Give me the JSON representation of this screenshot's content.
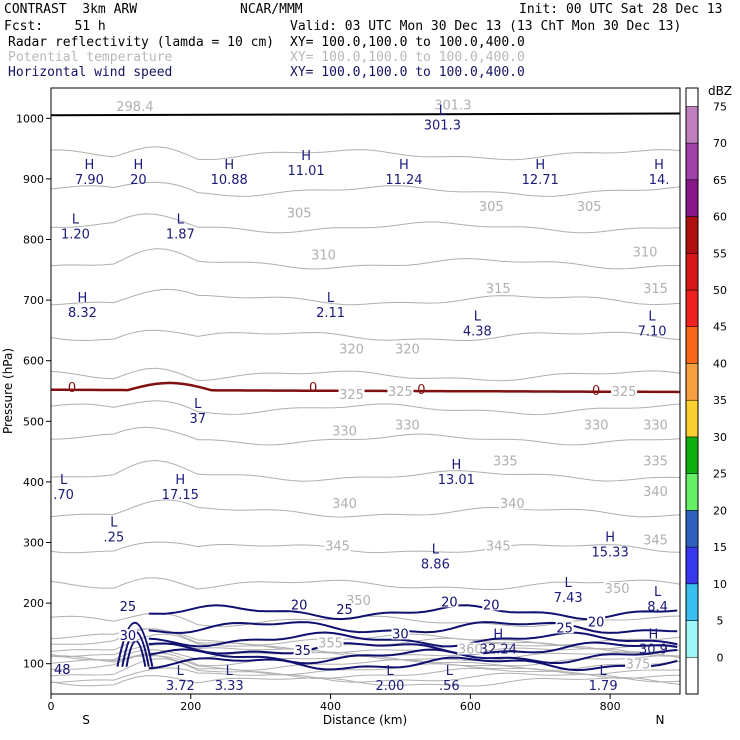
{
  "header": {
    "model": "CONTRAST  3km ARW",
    "org": "NCAR/MMM",
    "init": "Init: 00 UTC Sat 28 Dec 13",
    "fcst": "Fcst:    51 h",
    "valid": "Valid: 03 UTC Mon 30 Dec 13 (13 ChT Mon 30 Dec 13)",
    "fields": [
      {
        "name": "Radar reflectivity (lamda = 10 cm)",
        "xy": "XY= 100.0,100.0 to 100.0,400.0",
        "style": "dark"
      },
      {
        "name": "Potential temperature",
        "xy": "XY= 100.0,100.0 to 100.0,400.0",
        "style": "faint"
      },
      {
        "name": "Horizontal wind speed",
        "xy": "XY= 100.0,100.0 to 100.0,400.0",
        "style": "navy"
      }
    ]
  },
  "chart_data": {
    "type": "cross-section",
    "xlabel": "Distance (km)",
    "ylabel": "Pressure (hPa)",
    "x_ticks": [
      "0",
      "200",
      "400",
      "600",
      "800"
    ],
    "x_tick_values": [
      0,
      200,
      400,
      600,
      800
    ],
    "xlim": [
      0,
      900
    ],
    "x_end_labels": {
      "left": "S",
      "right": "N"
    },
    "y_ticks": [
      "100",
      "200",
      "300",
      "400",
      "500",
      "600",
      "700",
      "800",
      "900",
      "1000"
    ],
    "y_tick_values": [
      100,
      200,
      300,
      400,
      500,
      600,
      700,
      800,
      900,
      1000
    ],
    "ylim": [
      1050,
      50
    ],
    "colorbar": {
      "unit": "dBZ",
      "levels": [
        "0",
        "5",
        "10",
        "15",
        "20",
        "25",
        "30",
        "35",
        "40",
        "45",
        "50",
        "55",
        "60",
        "65",
        "70",
        "75"
      ],
      "colors": [
        "#ffffff",
        "#9ff5f5",
        "#38c0f0",
        "#3838f0",
        "#3060c0",
        "#66f066",
        "#10b010",
        "#f8d030",
        "#f8a040",
        "#f86818",
        "#f02020",
        "#d81818",
        "#b01010",
        "#881888",
        "#a040a8",
        "#c080c0"
      ]
    },
    "potential_temperature_labels": [
      {
        "text": "375",
        "x": 840,
        "p": 95
      },
      {
        "text": "360",
        "x": 600,
        "p": 120
      },
      {
        "text": "355",
        "x": 400,
        "p": 130
      },
      {
        "text": "350",
        "x": 440,
        "p": 200
      },
      {
        "text": "350",
        "x": 810,
        "p": 220
      },
      {
        "text": "345",
        "x": 410,
        "p": 290
      },
      {
        "text": "345",
        "x": 640,
        "p": 290
      },
      {
        "text": "345",
        "x": 865,
        "p": 300
      },
      {
        "text": "340",
        "x": 420,
        "p": 360
      },
      {
        "text": "340",
        "x": 660,
        "p": 360
      },
      {
        "text": "340",
        "x": 865,
        "p": 380
      },
      {
        "text": "335",
        "x": 650,
        "p": 430
      },
      {
        "text": "335",
        "x": 865,
        "p": 430
      },
      {
        "text": "330",
        "x": 420,
        "p": 480
      },
      {
        "text": "330",
        "x": 510,
        "p": 490
      },
      {
        "text": "330",
        "x": 780,
        "p": 490
      },
      {
        "text": "330",
        "x": 865,
        "p": 490
      },
      {
        "text": "325",
        "x": 430,
        "p": 540
      },
      {
        "text": "325",
        "x": 500,
        "p": 545
      },
      {
        "text": "325",
        "x": 820,
        "p": 545
      },
      {
        "text": "320",
        "x": 430,
        "p": 615
      },
      {
        "text": "320",
        "x": 510,
        "p": 615
      },
      {
        "text": "315",
        "x": 640,
        "p": 715
      },
      {
        "text": "315",
        "x": 865,
        "p": 715
      },
      {
        "text": "310",
        "x": 390,
        "p": 770
      },
      {
        "text": "310",
        "x": 850,
        "p": 775
      },
      {
        "text": "305",
        "x": 355,
        "p": 840
      },
      {
        "text": "305",
        "x": 630,
        "p": 850
      },
      {
        "text": "305",
        "x": 770,
        "p": 850
      },
      {
        "text": "298.4",
        "x": 120,
        "p": 1015
      },
      {
        "text": "301.3",
        "x": 575,
        "p": 1018
      }
    ],
    "wind_speed_labels": [
      {
        "text": "35",
        "x": 360,
        "p": 118
      },
      {
        "text": "30",
        "x": 500,
        "p": 145
      },
      {
        "text": "25",
        "x": 735,
        "p": 155
      },
      {
        "text": "20",
        "x": 780,
        "p": 165
      },
      {
        "text": "25",
        "x": 420,
        "p": 185
      },
      {
        "text": "20",
        "x": 355,
        "p": 193
      },
      {
        "text": "20",
        "x": 570,
        "p": 198
      },
      {
        "text": "20",
        "x": 630,
        "p": 193
      },
      {
        "text": "30",
        "x": 110,
        "p": 142
      },
      {
        "text": "25",
        "x": 110,
        "p": 190
      }
    ],
    "freezing_level_labels": [
      {
        "text": "0",
        "x": 30,
        "p": 555
      },
      {
        "text": "0",
        "x": 375,
        "p": 555
      },
      {
        "text": "0",
        "x": 530,
        "p": 552
      },
      {
        "text": "0",
        "x": 780,
        "p": 550
      }
    ],
    "high_low_markers": [
      {
        "type": "L",
        "value": "3.72",
        "x": 185,
        "p": 75
      },
      {
        "type": "L",
        "value": "3.33",
        "x": 255,
        "p": 75
      },
      {
        "type": "L",
        "value": "2.00",
        "x": 485,
        "p": 75
      },
      {
        "type": "L",
        "value": ".56",
        "x": 570,
        "p": 75
      },
      {
        "type": "L",
        "value": "1.79",
        "x": 790,
        "p": 75
      },
      {
        "type": "H",
        "value": "32.24",
        "x": 640,
        "p": 135
      },
      {
        "type": "H",
        "value": "30.9",
        "x": 862,
        "p": 135
      },
      {
        "type": "L",
        "value": "8.4",
        "x": 868,
        "p": 205
      },
      {
        "type": "L",
        "value": "7.43",
        "x": 740,
        "p": 220
      },
      {
        "type": "L",
        "value": "8.86",
        "x": 550,
        "p": 275
      },
      {
        "type": "H",
        "value": "15.33",
        "x": 800,
        "p": 295
      },
      {
        "type": "L",
        "value": ".25",
        "x": 90,
        "p": 320
      },
      {
        "type": "L",
        "value": ".70",
        "x": 18,
        "p": 390
      },
      {
        "type": "H",
        "value": "17.15",
        "x": 185,
        "p": 390
      },
      {
        "type": "H",
        "value": "13.01",
        "x": 580,
        "p": 415
      },
      {
        "type": "L",
        "value": "37",
        "x": 210,
        "p": 515
      },
      {
        "type": "L",
        "value": "4.38",
        "x": 610,
        "p": 660
      },
      {
        "type": "L",
        "value": "7.10",
        "x": 860,
        "p": 660
      },
      {
        "type": "H",
        "value": "8.32",
        "x": 45,
        "p": 690
      },
      {
        "type": "L",
        "value": "2.11",
        "x": 400,
        "p": 690
      },
      {
        "type": "L",
        "value": "1.20",
        "x": 35,
        "p": 820
      },
      {
        "type": "L",
        "value": "1.87",
        "x": 185,
        "p": 820
      },
      {
        "type": "H",
        "value": "7.90",
        "x": 55,
        "p": 910
      },
      {
        "type": "H",
        "value": "20",
        "x": 125,
        "p": 910
      },
      {
        "type": "H",
        "value": "10.88",
        "x": 255,
        "p": 910
      },
      {
        "type": "H",
        "value": "11.01",
        "x": 365,
        "p": 925
      },
      {
        "type": "H",
        "value": "11.24",
        "x": 505,
        "p": 910
      },
      {
        "type": "H",
        "value": "12.71",
        "x": 700,
        "p": 910
      },
      {
        "type": "H",
        "value": "14.",
        "x": 870,
        "p": 910
      },
      {
        "type": "L",
        "value": "301.3",
        "x": 560,
        "p": 1000
      }
    ],
    "edge_label": "48"
  }
}
